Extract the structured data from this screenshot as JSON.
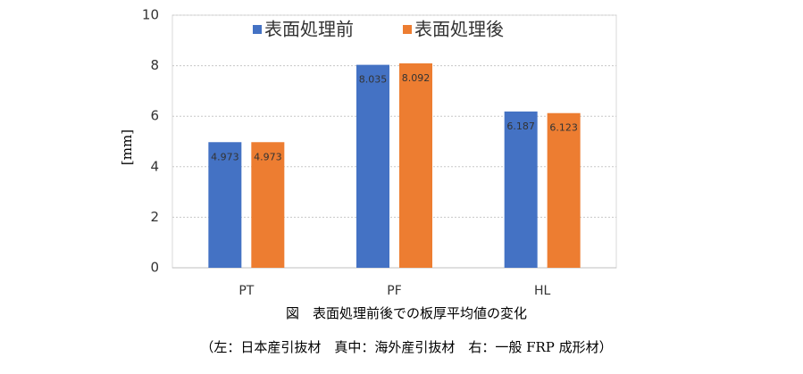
{
  "chart_data": {
    "type": "bar",
    "categories": [
      "PT",
      "PF",
      "HL"
    ],
    "series": [
      {
        "name": "表面処理前",
        "color": "#4472c4",
        "values": [
          4.973,
          8.035,
          6.187
        ]
      },
      {
        "name": "表面処理後",
        "color": "#ed7d31",
        "values": [
          4.973,
          8.092,
          6.123
        ]
      }
    ],
    "ylabel": "[mm]",
    "ylim": [
      0,
      10
    ],
    "yticks": [
      0,
      2,
      4,
      6,
      8,
      10
    ],
    "grid": true,
    "legend": "top",
    "caption": "図　表面処理前後での板厚平均値の変化",
    "note": "（左：日本産引抜材　真中：海外産引抜材　右：一般 FRP 成形材）"
  }
}
